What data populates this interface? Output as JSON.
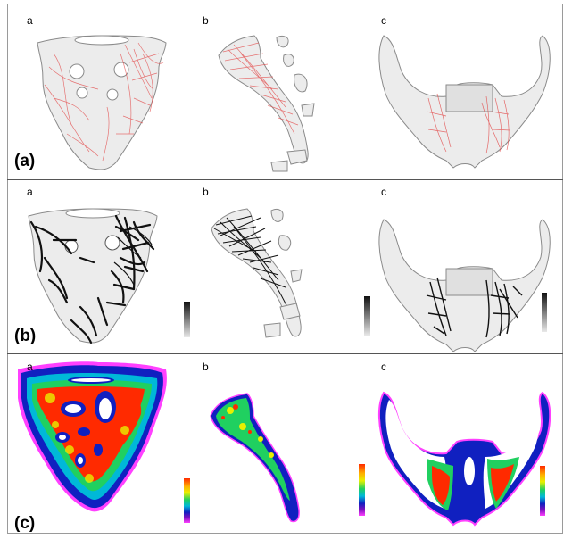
{
  "figure": {
    "panels": [
      {
        "label": "(a)",
        "subfigures": [
          "a",
          "b",
          "c"
        ]
      },
      {
        "label": "(b)",
        "subfigures": [
          "a",
          "b",
          "c"
        ]
      },
      {
        "label": "(c)",
        "subfigures": [
          "a",
          "b",
          "c"
        ]
      }
    ]
  },
  "colors": {
    "bone_fill": "#ececec",
    "bone_outline": "#8a8a8a",
    "trabecular_red": "#e34a4a",
    "trabecular_black": "#111111",
    "heatmap_scale": [
      "#ff2a00",
      "#ffb000",
      "#e8f000",
      "#20d060",
      "#00b8d8",
      "#1020c0",
      "#8010c0",
      "#ff40ff"
    ]
  }
}
